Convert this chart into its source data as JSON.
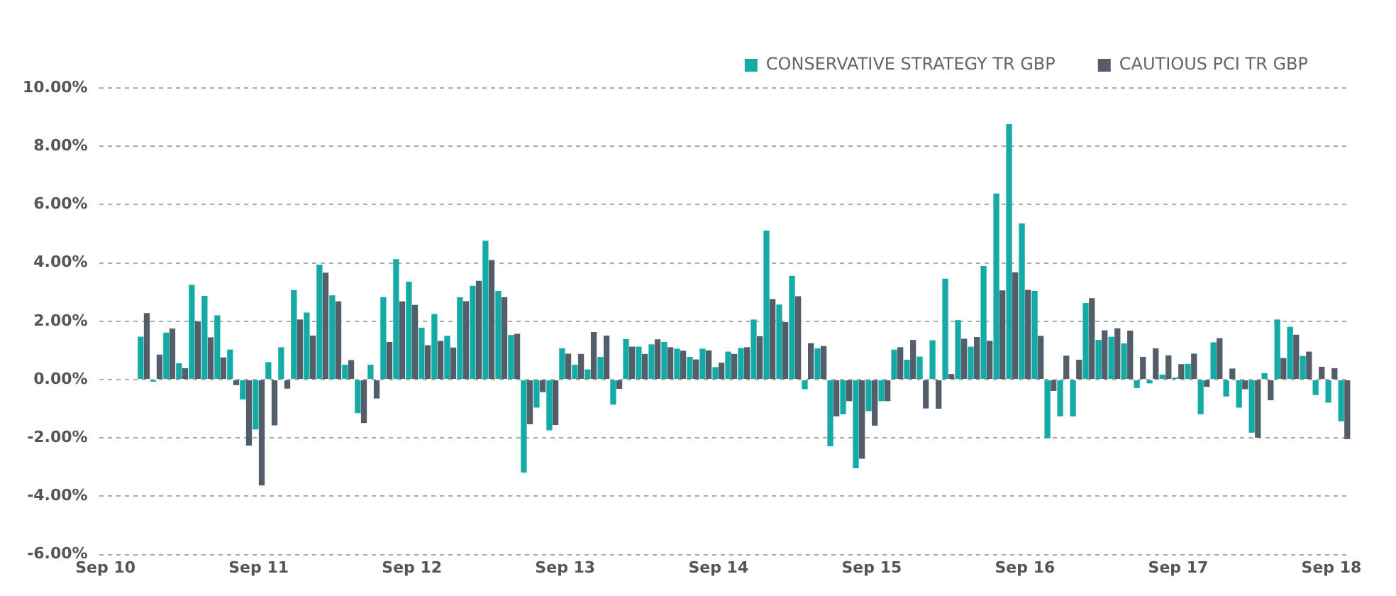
{
  "chart_data": {
    "type": "bar",
    "categories": [
      "Sep 10",
      null,
      null,
      null,
      null,
      null,
      null,
      null,
      null,
      null,
      null,
      null,
      "Sep 11",
      null,
      null,
      null,
      null,
      null,
      null,
      null,
      null,
      null,
      null,
      null,
      "Sep 12",
      null,
      null,
      null,
      null,
      null,
      null,
      null,
      null,
      null,
      null,
      null,
      "Sep 13",
      null,
      null,
      null,
      null,
      null,
      null,
      null,
      null,
      null,
      null,
      null,
      "Sep 14",
      null,
      null,
      null,
      null,
      null,
      null,
      null,
      null,
      null,
      null,
      null,
      "Sep 15",
      null,
      null,
      null,
      null,
      null,
      null,
      null,
      null,
      null,
      null,
      null,
      "Sep 16",
      null,
      null,
      null,
      null,
      null,
      null,
      null,
      null,
      null,
      null,
      null,
      "Sep 17",
      null,
      null,
      null,
      null,
      null,
      null,
      null,
      null,
      null,
      null,
      null,
      "Sep 18",
      null
    ],
    "series": [
      {
        "name": "CONSERVATIVE STRATEGY TR GBP",
        "color": "#14aba7",
        "values": [
          null,
          null,
          null,
          1.47,
          -0.07,
          1.61,
          0.56,
          3.25,
          2.87,
          2.2,
          1.03,
          -0.68,
          -1.71,
          0.6,
          1.11,
          3.07,
          2.3,
          3.94,
          2.89,
          0.51,
          -1.15,
          0.51,
          2.83,
          4.13,
          3.36,
          1.78,
          2.25,
          1.5,
          2.82,
          3.22,
          4.76,
          3.04,
          1.53,
          -3.19,
          -0.96,
          -1.74,
          1.07,
          0.51,
          0.35,
          0.78,
          -0.86,
          1.39,
          1.13,
          1.21,
          1.29,
          1.06,
          0.78,
          1.06,
          0.43,
          0.96,
          1.08,
          2.06,
          5.11,
          2.57,
          3.56,
          -0.33,
          1.07,
          -2.29,
          -1.19,
          -3.04,
          -1.08,
          -0.74,
          1.03,
          0.68,
          0.79,
          1.35,
          3.46,
          2.04,
          1.13,
          3.89,
          6.38,
          8.76,
          5.36,
          3.04,
          -2.01,
          -1.26,
          -1.26,
          2.63,
          1.36,
          1.47,
          1.24,
          -0.29,
          -0.13,
          0.17,
          0.07,
          0.54,
          -1.19,
          1.28,
          -0.58,
          -0.96,
          -1.82,
          0.22,
          2.06,
          1.81,
          0.81,
          -0.53,
          -0.79,
          -1.43
        ]
      },
      {
        "name": "CAUTIOUS PCI TR GBP",
        "color": "#535e6a",
        "values": [
          null,
          null,
          null,
          2.28,
          0.86,
          1.75,
          0.39,
          2.0,
          1.45,
          0.76,
          -0.19,
          -2.26,
          -3.63,
          -1.57,
          -0.31,
          2.06,
          1.51,
          3.67,
          2.68,
          0.67,
          -1.49,
          -0.65,
          1.29,
          2.68,
          2.56,
          1.18,
          1.33,
          1.1,
          2.69,
          3.39,
          4.1,
          2.83,
          1.57,
          -1.53,
          -0.43,
          -1.56,
          0.89,
          0.88,
          1.63,
          1.51,
          -0.32,
          1.13,
          0.88,
          1.38,
          1.11,
          0.99,
          0.69,
          1.0,
          0.58,
          0.88,
          1.11,
          1.49,
          2.76,
          1.97,
          2.86,
          1.25,
          1.15,
          -1.26,
          -0.74,
          -2.71,
          -1.58,
          -0.74,
          1.11,
          1.36,
          -0.99,
          -1.0,
          0.19,
          1.4,
          1.46,
          1.33,
          3.06,
          3.68,
          3.08,
          1.5,
          -0.39,
          0.82,
          0.68,
          2.79,
          1.69,
          1.76,
          1.68,
          0.78,
          1.07,
          0.83,
          0.53,
          0.89,
          -0.25,
          1.42,
          0.38,
          -0.33,
          -1.99,
          -0.71,
          0.74,
          1.54,
          0.96,
          0.44,
          0.39,
          -2.04
        ]
      }
    ],
    "ylim": [
      -6,
      10
    ],
    "yticks": [
      {
        "value": -6,
        "label": "-6.00%"
      },
      {
        "value": -4,
        "label": "-4.00%"
      },
      {
        "value": -2,
        "label": "-2.00%"
      },
      {
        "value": 0,
        "label": "0.00%"
      },
      {
        "value": 2,
        "label": "2.00%"
      },
      {
        "value": 4,
        "label": "4.00%"
      },
      {
        "value": 6,
        "label": "6.00%"
      },
      {
        "value": 8,
        "label": "8.00%"
      },
      {
        "value": 10,
        "label": "10.00%"
      }
    ],
    "grid": "y",
    "legend": "top right"
  }
}
